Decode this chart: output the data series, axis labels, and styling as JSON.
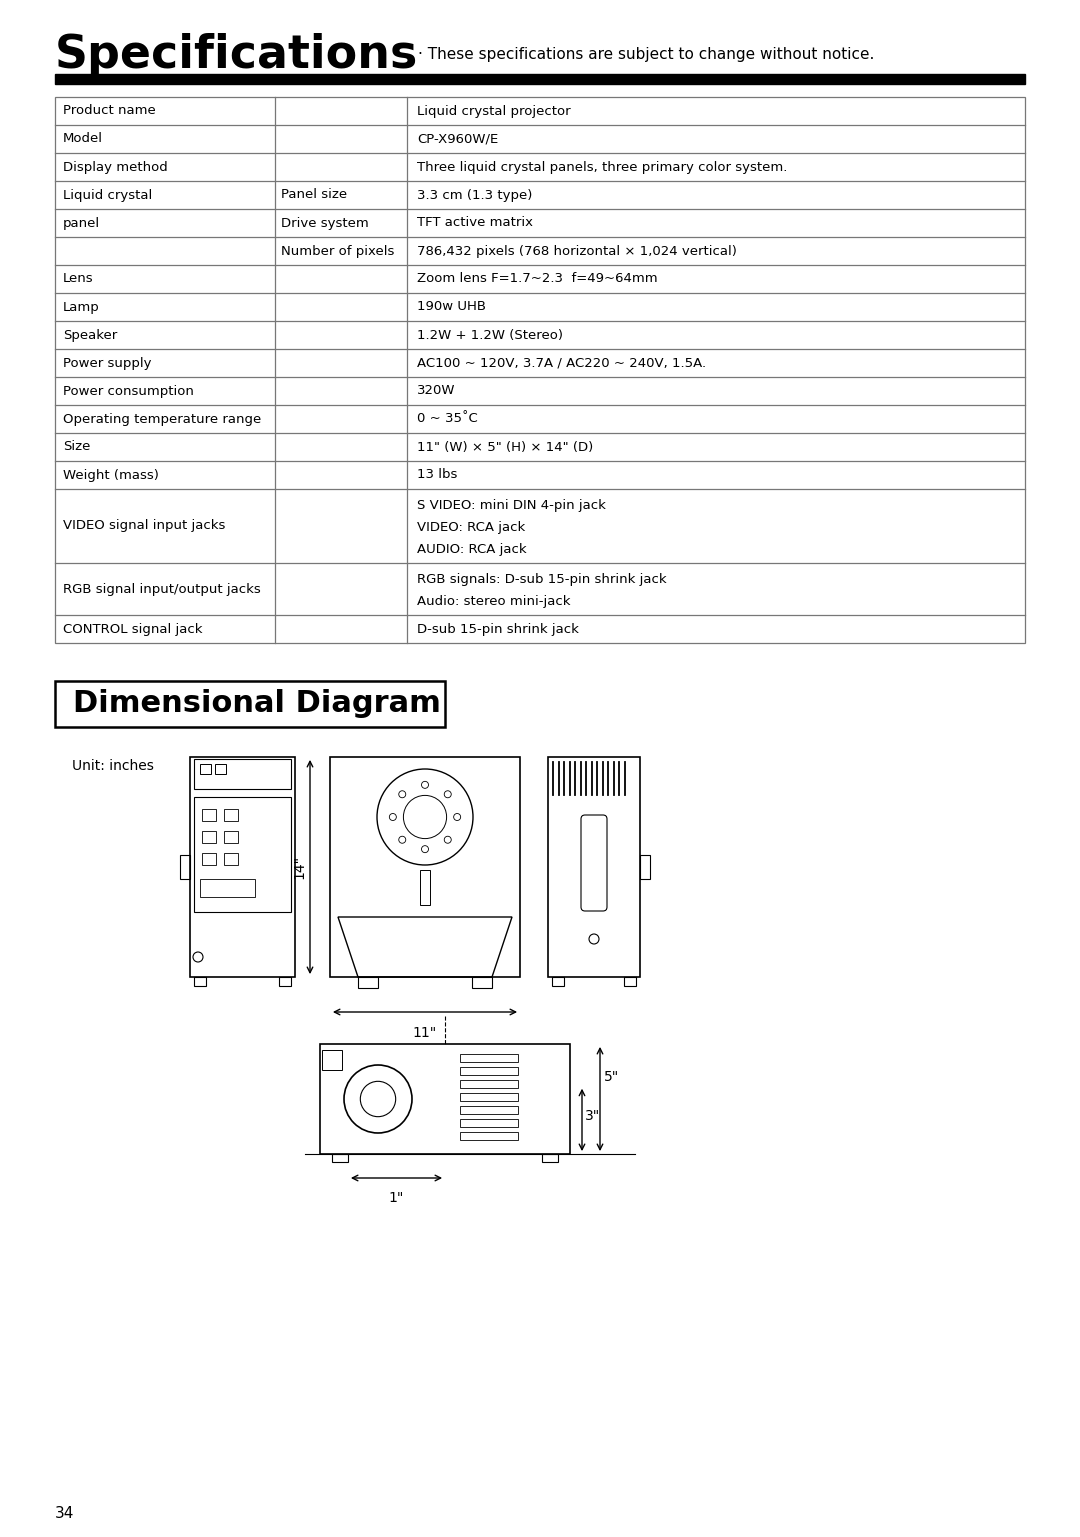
{
  "title": "Specifications",
  "subtitle": "· These specifications are subject to change without notice.",
  "bg_color": "#ffffff",
  "text_color": "#000000",
  "table_rows": [
    {
      "col1": "Product name",
      "col2": "",
      "col3": "Liquid crystal projector"
    },
    {
      "col1": "Model",
      "col2": "",
      "col3": "CP-X960W/E"
    },
    {
      "col1": "Display method",
      "col2": "",
      "col3": "Three liquid crystal panels, three primary color system."
    },
    {
      "col1": "Liquid crystal",
      "col2": "Panel size",
      "col3": "3.3 cm (1.3 type)"
    },
    {
      "col1": "panel",
      "col2": "Drive system",
      "col3": "TFT active matrix"
    },
    {
      "col1": "",
      "col2": "Number of pixels",
      "col3": "786,432 pixels (768 horizontal × 1,024 vertical)"
    },
    {
      "col1": "Lens",
      "col2": "",
      "col3": "Zoom lens F=1.7~2.3  f=49~64mm"
    },
    {
      "col1": "Lamp",
      "col2": "",
      "col3": "190w UHB"
    },
    {
      "col1": "Speaker",
      "col2": "",
      "col3": "1.2W + 1.2W (Stereo)"
    },
    {
      "col1": "Power supply",
      "col2": "",
      "col3": "AC100 ~ 120V, 3.7A / AC220 ~ 240V, 1.5A."
    },
    {
      "col1": "Power consumption",
      "col2": "",
      "col3": "320W"
    },
    {
      "col1": "Operating temperature range",
      "col2": "",
      "col3": "0 ~ 35˚C"
    },
    {
      "col1": "Size",
      "col2": "",
      "col3": "11\" (W) × 5\" (H) × 14\" (D)"
    },
    {
      "col1": "Weight (mass)",
      "col2": "",
      "col3": "13 lbs"
    },
    {
      "col1": "VIDEO signal input jacks",
      "col2": "",
      "col3": "S VIDEO: mini DIN 4-pin jack\nVIDEO: RCA jack\nAUDIO: RCA jack"
    },
    {
      "col1": "RGB signal input/output jacks",
      "col2": "",
      "col3": "RGB signals: D-sub 15-pin shrink jack\nAudio: stereo mini-jack"
    },
    {
      "col1": "CONTROL signal jack",
      "col2": "",
      "col3": "D-sub 15-pin shrink jack"
    }
  ],
  "section2_title": "Dimensional Diagram",
  "unit_label": "Unit: inches",
  "dim_14": "14\"",
  "dim_11": "11\"",
  "dim_5": "5\"",
  "dim_3": "3\"",
  "dim_1": "1\"",
  "page_number": "34"
}
